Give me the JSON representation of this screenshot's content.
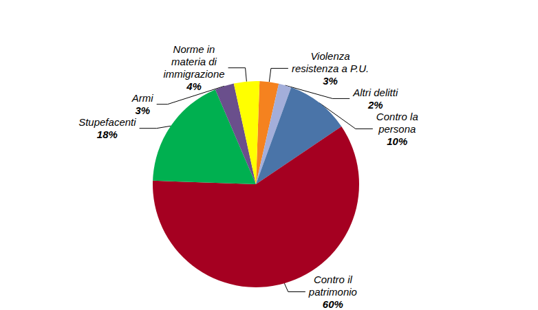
{
  "chart_data": {
    "type": "pie",
    "categories": [
      "Violenza\nresistenza a P.U.",
      "Altri delitti",
      "Contro la\npersona",
      "Contro il\npatrimonio",
      "Stupefacenti",
      "Armi",
      "Norme in\nmateria di\nimmigrazione"
    ],
    "values": [
      3,
      2,
      10,
      60,
      18,
      3,
      4
    ],
    "value_labels": [
      "3%",
      "2%",
      "10%",
      "60%",
      "18%",
      "3%",
      "4%"
    ],
    "colors": [
      "#F5821F",
      "#A3AEDA",
      "#4A74A8",
      "#A50021",
      "#00B050",
      "#6A4F8C",
      "#FFFF00"
    ],
    "data_labels": true
  }
}
